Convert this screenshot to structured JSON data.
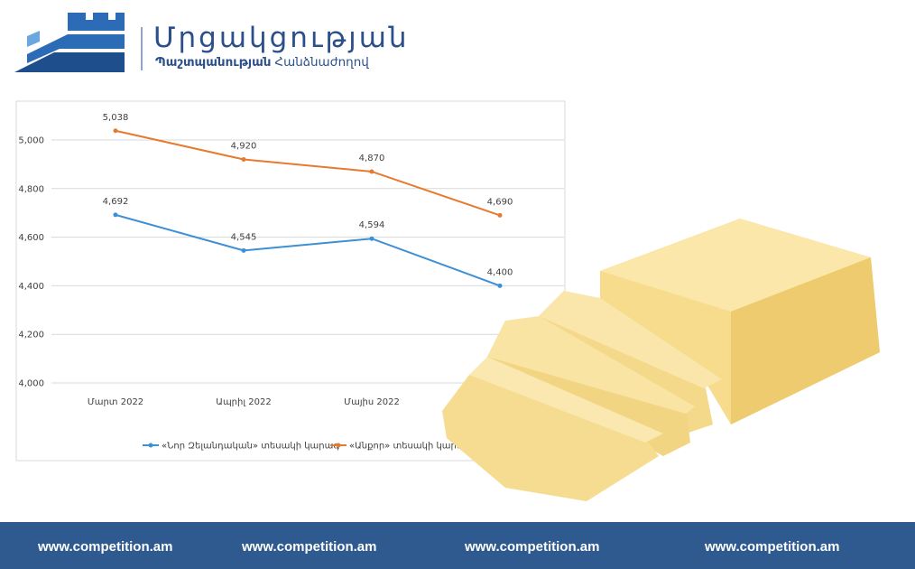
{
  "logo": {
    "title": "Մրցակցության",
    "subtitle_bold": "Պաշտպանության",
    "subtitle": "Հանձնաժողով"
  },
  "chart_data": {
    "type": "line",
    "categories": [
      "Մարտ 2022",
      "Ապրիլ 2022",
      "Մայիս 2022",
      null
    ],
    "series": [
      {
        "name": "«Նոր Զելանդական» տեսակի կարագ",
        "color": "#3d8fd6",
        "values": [
          4692,
          4545,
          4594,
          4400
        ],
        "value_labels": [
          "4,692",
          "4,545",
          "4,594",
          "4,400"
        ]
      },
      {
        "name": "«Անքոր» տեսակի կարագ",
        "color": "#e67a2e",
        "values": [
          5038,
          4920,
          4870,
          4690
        ],
        "value_labels": [
          "5,038",
          "4,920",
          "4,870",
          "4,690"
        ]
      }
    ],
    "ylim": [
      4000,
      5000
    ],
    "yticks": [
      {
        "value": 4000,
        "label": "4,000"
      },
      {
        "value": 4200,
        "label": "4,200"
      },
      {
        "value": 4400,
        "label": "4,400"
      },
      {
        "value": 4600,
        "label": "4,600"
      },
      {
        "value": 4800,
        "label": "4,800"
      },
      {
        "value": 5000,
        "label": "5,000"
      }
    ],
    "grid": true,
    "legend": "bottom"
  },
  "footer": {
    "links": [
      "www.competition.am",
      "www.competition.am",
      "www.competition.am",
      "www.competition.am"
    ]
  }
}
